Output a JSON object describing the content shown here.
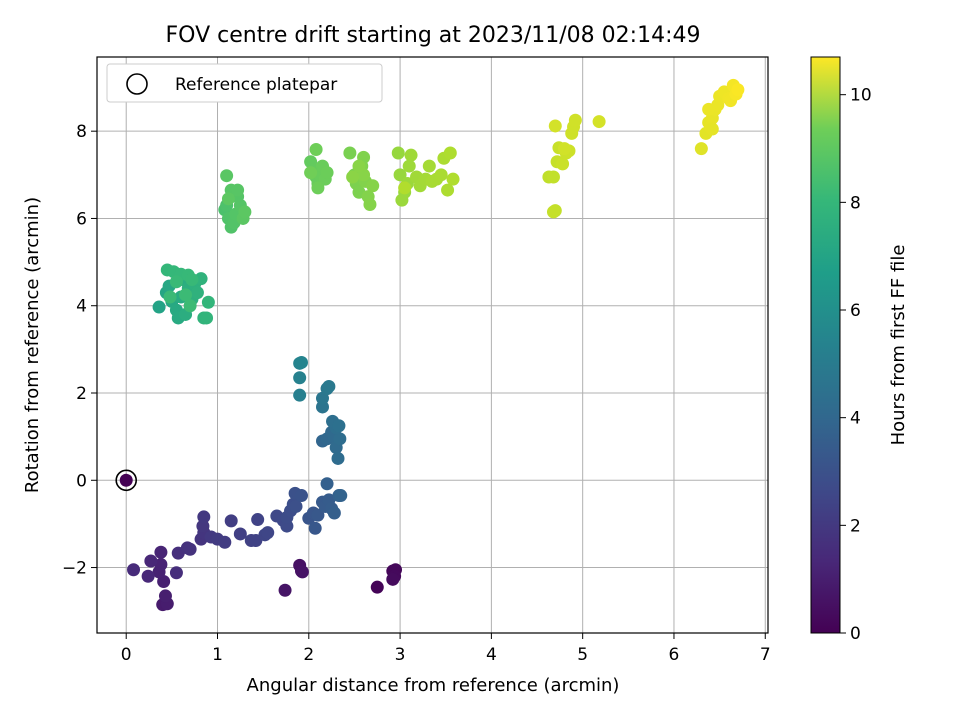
{
  "chart_data": {
    "type": "scatter",
    "title": "FOV centre drift starting at 2023/11/08 02:14:49",
    "xlabel": "Angular distance from reference (arcmin)",
    "ylabel": "Rotation from reference (arcmin)",
    "xlim": [
      -0.32,
      7.03
    ],
    "ylim": [
      -3.5,
      9.7
    ],
    "xticks": [
      0,
      1,
      2,
      3,
      4,
      5,
      6,
      7
    ],
    "yticks": [
      -2,
      0,
      2,
      4,
      6,
      8
    ],
    "xtick_labels": [
      "0",
      "1",
      "2",
      "3",
      "4",
      "5",
      "6",
      "7"
    ],
    "ytick_labels": [
      "−2",
      "0",
      "2",
      "4",
      "6",
      "8"
    ],
    "grid": true,
    "legend": {
      "placement": "top-left",
      "entries": [
        "Reference platepar"
      ]
    },
    "reference_point": {
      "x": 0,
      "y": 0
    },
    "colorbar": {
      "label": "Hours from first FF file",
      "range": [
        0,
        10.7
      ],
      "ticks": [
        0,
        2,
        4,
        6,
        8,
        10
      ],
      "tick_labels": [
        "0",
        "2",
        "4",
        "6",
        "8",
        "10"
      ],
      "colormap": "viridis"
    },
    "series": [
      {
        "points": [
          [
            0,
            0,
            0.0
          ],
          [
            2.75,
            -2.45,
            0.1
          ],
          [
            2.92,
            -2.08,
            0.15
          ],
          [
            2.95,
            -2.05,
            0.2
          ],
          [
            2.94,
            -2.2,
            0.25
          ],
          [
            2.92,
            -2.27,
            0.3
          ],
          [
            1.92,
            -2.08,
            0.45
          ],
          [
            1.9,
            -1.95,
            0.5
          ],
          [
            1.93,
            -2.1,
            0.55
          ],
          [
            1.74,
            -2.52,
            0.6
          ],
          [
            0.4,
            -2.85,
            0.8
          ],
          [
            0.45,
            -2.83,
            0.85
          ],
          [
            0.43,
            -2.65,
            0.9
          ],
          [
            0.41,
            -2.32,
            0.95
          ],
          [
            0.36,
            -2.1,
            1.0
          ],
          [
            0.38,
            -1.93,
            1.05
          ],
          [
            0.38,
            -1.65,
            1.1
          ],
          [
            0.27,
            -1.85,
            1.15
          ],
          [
            0.24,
            -2.2,
            1.2
          ],
          [
            0.08,
            -2.05,
            1.3
          ],
          [
            0.55,
            -2.12,
            1.4
          ],
          [
            0.57,
            -1.67,
            1.45
          ],
          [
            0.67,
            -1.55,
            1.5
          ],
          [
            0.7,
            -1.58,
            1.55
          ],
          [
            0.82,
            -1.35,
            1.6
          ],
          [
            0.85,
            -1.2,
            1.65
          ],
          [
            0.84,
            -1.05,
            1.7
          ],
          [
            0.85,
            -0.84,
            1.75
          ],
          [
            0.93,
            -1.3,
            1.8
          ],
          [
            1.0,
            -1.35,
            1.85
          ],
          [
            1.08,
            -1.42,
            1.9
          ],
          [
            1.15,
            -0.93,
            1.95
          ],
          [
            1.25,
            -1.23,
            2.0
          ],
          [
            1.37,
            -1.38,
            2.05
          ],
          [
            1.42,
            -1.38,
            2.1
          ],
          [
            1.44,
            -0.9,
            2.15
          ],
          [
            1.52,
            -1.25,
            2.2
          ],
          [
            1.55,
            -1.2,
            2.25
          ],
          [
            1.65,
            -0.82,
            2.3
          ],
          [
            1.72,
            -0.92,
            2.35
          ],
          [
            1.76,
            -1.05,
            2.4
          ],
          [
            1.76,
            -0.85,
            2.45
          ],
          [
            1.8,
            -0.7,
            2.5
          ],
          [
            1.83,
            -0.55,
            2.55
          ],
          [
            1.86,
            -0.6,
            2.6
          ],
          [
            1.85,
            -0.3,
            2.65
          ],
          [
            1.92,
            -0.35,
            2.7
          ],
          [
            2.0,
            -0.87,
            2.8
          ],
          [
            2.05,
            -0.75,
            2.85
          ],
          [
            2.07,
            -1.1,
            2.9
          ],
          [
            2.1,
            -0.8,
            2.95
          ],
          [
            2.15,
            -0.5,
            3.0
          ],
          [
            2.18,
            -0.6,
            3.05
          ],
          [
            2.22,
            -0.45,
            3.1
          ],
          [
            2.25,
            -0.65,
            3.15
          ],
          [
            2.28,
            -0.75,
            3.2
          ],
          [
            2.2,
            -0.08,
            3.25
          ],
          [
            2.33,
            -0.35,
            3.3
          ],
          [
            2.35,
            -0.35,
            3.35
          ],
          [
            2.15,
            0.9,
            3.5
          ],
          [
            2.2,
            0.95,
            3.55
          ],
          [
            2.25,
            1.1,
            3.6
          ],
          [
            2.28,
            1.0,
            3.65
          ],
          [
            2.3,
            0.75,
            3.7
          ],
          [
            2.32,
            0.5,
            3.75
          ],
          [
            2.34,
            0.95,
            3.8
          ],
          [
            2.3,
            1.2,
            3.85
          ],
          [
            2.26,
            1.35,
            3.9
          ],
          [
            2.33,
            1.25,
            3.95
          ],
          [
            2.15,
            1.68,
            4.1
          ],
          [
            2.15,
            1.88,
            4.2
          ],
          [
            2.2,
            2.1,
            4.3
          ],
          [
            2.22,
            2.15,
            4.35
          ],
          [
            1.9,
            1.95,
            4.6
          ],
          [
            1.9,
            2.35,
            4.7
          ],
          [
            1.9,
            2.68,
            4.8
          ],
          [
            1.92,
            2.7,
            4.85
          ],
          [
            0.36,
            3.97,
            6.2
          ],
          [
            0.44,
            4.3,
            6.3
          ],
          [
            0.47,
            4.45,
            6.35
          ],
          [
            0.5,
            4.1,
            6.4
          ],
          [
            0.55,
            3.9,
            6.45
          ],
          [
            0.57,
            3.72,
            6.5
          ],
          [
            0.6,
            4.2,
            6.55
          ],
          [
            0.62,
            4.6,
            6.6
          ],
          [
            0.65,
            3.8,
            6.65
          ],
          [
            0.68,
            4.4,
            6.7
          ],
          [
            0.72,
            4.15,
            6.75
          ],
          [
            0.75,
            4.5,
            6.8
          ],
          [
            0.78,
            4.3,
            6.85
          ],
          [
            0.82,
            4.62,
            6.9
          ],
          [
            0.85,
            3.72,
            6.95
          ],
          [
            0.88,
            3.72,
            7.0
          ],
          [
            0.9,
            4.08,
            7.05
          ],
          [
            0.45,
            4.82,
            7.1
          ],
          [
            0.52,
            4.78,
            7.12
          ],
          [
            0.6,
            4.72,
            7.15
          ],
          [
            0.68,
            4.7,
            7.17
          ],
          [
            0.72,
            4.6,
            7.2
          ],
          [
            0.55,
            4.55,
            7.22
          ],
          [
            0.48,
            4.2,
            7.25
          ],
          [
            0.65,
            4.25,
            7.27
          ],
          [
            0.7,
            4.0,
            7.3
          ],
          [
            1.08,
            6.2,
            7.6
          ],
          [
            1.1,
            6.3,
            7.65
          ],
          [
            1.12,
            6.0,
            7.7
          ],
          [
            1.15,
            5.8,
            7.72
          ],
          [
            1.18,
            5.9,
            7.75
          ],
          [
            1.2,
            6.1,
            7.78
          ],
          [
            1.22,
            6.5,
            7.8
          ],
          [
            1.25,
            6.3,
            7.82
          ],
          [
            1.15,
            6.65,
            7.85
          ],
          [
            1.22,
            6.65,
            7.87
          ],
          [
            1.1,
            6.98,
            7.9
          ],
          [
            1.28,
            6.0,
            7.92
          ],
          [
            1.3,
            6.15,
            7.95
          ],
          [
            1.12,
            6.45,
            7.97
          ],
          [
            2.02,
            7.3,
            8.1
          ],
          [
            2.05,
            7.1,
            8.12
          ],
          [
            2.08,
            6.95,
            8.15
          ],
          [
            2.1,
            6.8,
            8.17
          ],
          [
            2.12,
            7.0,
            8.2
          ],
          [
            2.15,
            7.2,
            8.22
          ],
          [
            2.18,
            6.9,
            8.25
          ],
          [
            2.2,
            7.05,
            8.27
          ],
          [
            2.1,
            6.7,
            8.3
          ],
          [
            2.08,
            7.58,
            8.32
          ],
          [
            2.02,
            7.05,
            8.35
          ],
          [
            2.45,
            7.5,
            8.5
          ],
          [
            2.5,
            7.0,
            8.52
          ],
          [
            2.52,
            6.8,
            8.55
          ],
          [
            2.55,
            6.6,
            8.57
          ],
          [
            2.58,
            7.2,
            8.6
          ],
          [
            2.6,
            7.4,
            8.62
          ],
          [
            2.62,
            6.85,
            8.65
          ],
          [
            2.65,
            6.5,
            8.67
          ],
          [
            2.67,
            6.32,
            8.7
          ],
          [
            2.7,
            6.75,
            8.72
          ],
          [
            2.6,
            7.0,
            8.75
          ],
          [
            2.55,
            7.2,
            8.77
          ],
          [
            2.48,
            6.95,
            8.8
          ],
          [
            2.98,
            7.5,
            9.0
          ],
          [
            3.0,
            7.0,
            9.02
          ],
          [
            3.05,
            6.6,
            9.05
          ],
          [
            3.02,
            6.42,
            9.07
          ],
          [
            3.08,
            6.8,
            9.1
          ],
          [
            3.1,
            7.2,
            9.12
          ],
          [
            3.12,
            7.45,
            9.15
          ],
          [
            3.18,
            6.95,
            9.17
          ],
          [
            3.22,
            6.75,
            9.2
          ],
          [
            3.28,
            6.9,
            9.22
          ],
          [
            3.32,
            7.2,
            9.25
          ],
          [
            3.35,
            6.85,
            9.27
          ],
          [
            3.4,
            6.9,
            9.3
          ],
          [
            3.45,
            7.0,
            9.32
          ],
          [
            3.48,
            7.38,
            9.35
          ],
          [
            3.52,
            6.65,
            9.37
          ],
          [
            3.55,
            7.5,
            9.4
          ],
          [
            3.58,
            6.9,
            9.42
          ],
          [
            3.05,
            6.7,
            9.45
          ],
          [
            4.63,
            6.95,
            9.7
          ],
          [
            4.68,
            6.95,
            9.72
          ],
          [
            4.7,
            6.18,
            9.75
          ],
          [
            4.68,
            6.15,
            9.77
          ],
          [
            4.72,
            7.3,
            9.8
          ],
          [
            4.74,
            7.62,
            9.82
          ],
          [
            4.78,
            7.25,
            9.85
          ],
          [
            4.82,
            7.5,
            9.87
          ],
          [
            4.85,
            7.55,
            9.9
          ],
          [
            4.88,
            7.95,
            9.92
          ],
          [
            4.9,
            8.1,
            9.94
          ],
          [
            4.92,
            8.25,
            9.96
          ],
          [
            4.8,
            7.6,
            9.98
          ],
          [
            4.7,
            8.12,
            10.0
          ],
          [
            5.18,
            8.22,
            10.02
          ],
          [
            6.3,
            7.6,
            10.2
          ],
          [
            6.35,
            7.95,
            10.25
          ],
          [
            6.38,
            8.2,
            10.3
          ],
          [
            6.4,
            8.1,
            10.33
          ],
          [
            6.42,
            8.3,
            10.36
          ],
          [
            6.45,
            8.5,
            10.38
          ],
          [
            6.48,
            8.6,
            10.4
          ],
          [
            6.5,
            8.8,
            10.42
          ],
          [
            6.55,
            8.9,
            10.45
          ],
          [
            6.6,
            8.75,
            10.48
          ],
          [
            6.62,
            8.7,
            10.5
          ],
          [
            6.65,
            9.05,
            10.55
          ],
          [
            6.68,
            8.85,
            10.6
          ],
          [
            6.7,
            8.95,
            10.65
          ],
          [
            6.38,
            8.5,
            10.4
          ],
          [
            6.42,
            8.05,
            10.3
          ]
        ]
      }
    ]
  }
}
